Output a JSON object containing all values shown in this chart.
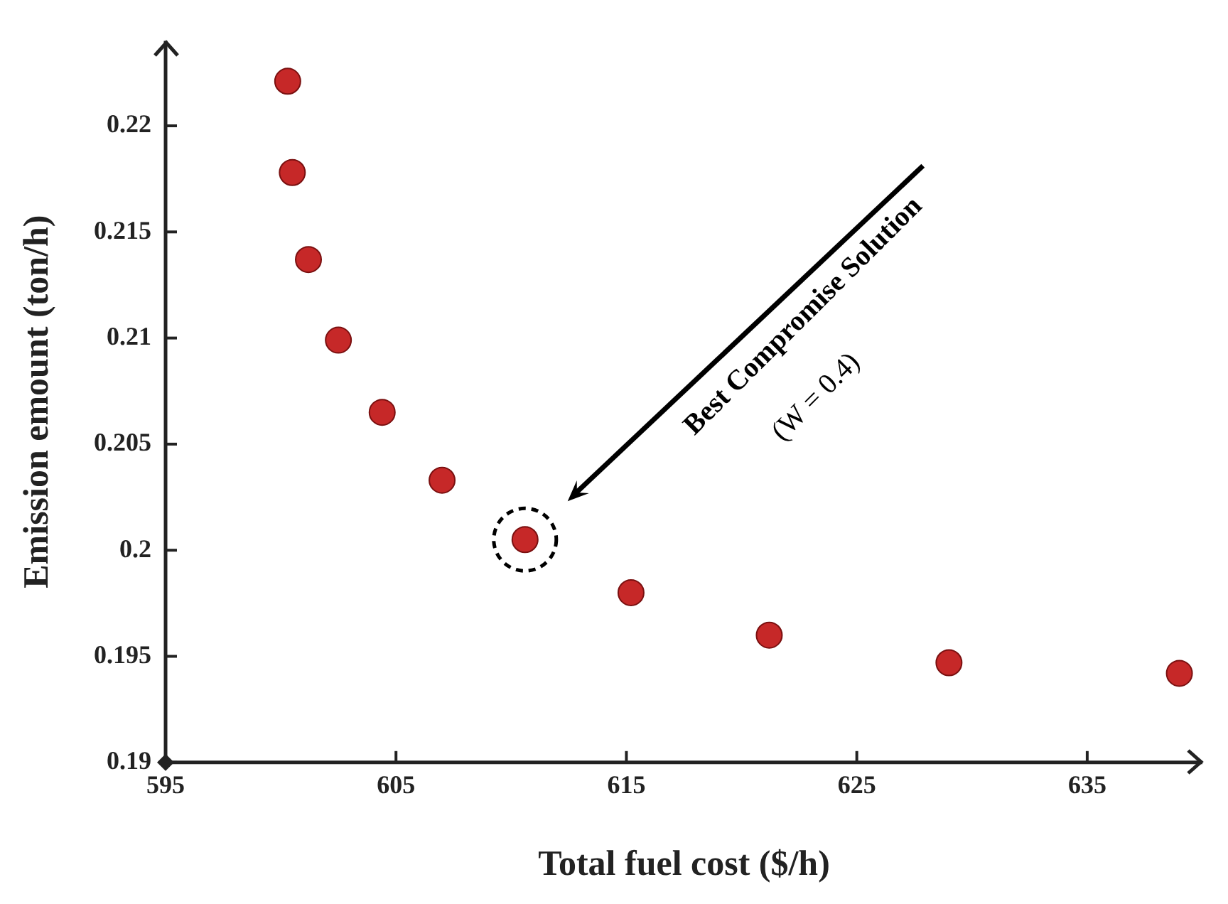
{
  "chart_data": {
    "type": "scatter",
    "xlabel": "Total fuel cost ($/h)",
    "ylabel": "Emission emount (ton/h)",
    "series": [
      {
        "color": "#c62828",
        "x": [
          600.3,
          600.5,
          601.2,
          602.5,
          604.4,
          607.0,
          610.6,
          615.2,
          621.2,
          629.0,
          639.0
        ],
        "values": [
          0.2221,
          0.2178,
          0.2137,
          0.2099,
          0.2065,
          0.2033,
          0.2005,
          0.198,
          0.196,
          0.1947,
          0.1942
        ]
      }
    ],
    "xlim": [
      595,
      640
    ],
    "xticks": [
      595,
      605,
      615,
      625,
      635
    ],
    "ylim": [
      0.19,
      0.224
    ],
    "yticks": [
      0.19,
      0.195,
      0.2,
      0.205,
      0.21,
      0.215,
      0.22
    ],
    "annotations": [
      "Best Compromise Solution",
      "(W = 0.4)"
    ],
    "grid": false,
    "legend": false,
    "marker": "circle"
  }
}
